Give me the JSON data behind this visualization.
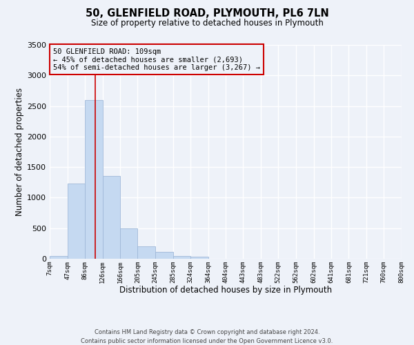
{
  "title": "50, GLENFIELD ROAD, PLYMOUTH, PL6 7LN",
  "subtitle": "Size of property relative to detached houses in Plymouth",
  "xlabel": "Distribution of detached houses by size in Plymouth",
  "ylabel": "Number of detached properties",
  "bar_edges": [
    7,
    47,
    86,
    126,
    166,
    205,
    245,
    285,
    324,
    364,
    404,
    443,
    483,
    522,
    562,
    602,
    641,
    681,
    721,
    760,
    800
  ],
  "bar_heights": [
    50,
    1230,
    2600,
    1350,
    500,
    200,
    110,
    50,
    35,
    0,
    0,
    0,
    0,
    0,
    0,
    0,
    0,
    0,
    0,
    0
  ],
  "bar_color": "#c5d9f1",
  "bar_edgecolor": "#a0b8d8",
  "vline_x": 109,
  "vline_color": "#cc0000",
  "ylim": [
    0,
    3500
  ],
  "annotation_text": "50 GLENFIELD ROAD: 109sqm\n← 45% of detached houses are smaller (2,693)\n54% of semi-detached houses are larger (3,267) →",
  "annotation_box_edgecolor": "#cc0000",
  "footnote1": "Contains HM Land Registry data © Crown copyright and database right 2024.",
  "footnote2": "Contains public sector information licensed under the Open Government Licence v3.0.",
  "tick_labels": [
    "7sqm",
    "47sqm",
    "86sqm",
    "126sqm",
    "166sqm",
    "205sqm",
    "245sqm",
    "285sqm",
    "324sqm",
    "364sqm",
    "404sqm",
    "443sqm",
    "483sqm",
    "522sqm",
    "562sqm",
    "602sqm",
    "641sqm",
    "681sqm",
    "721sqm",
    "760sqm",
    "800sqm"
  ],
  "background_color": "#eef2f9",
  "grid_color": "#ffffff",
  "yticks": [
    0,
    500,
    1000,
    1500,
    2000,
    2500,
    3000,
    3500
  ]
}
